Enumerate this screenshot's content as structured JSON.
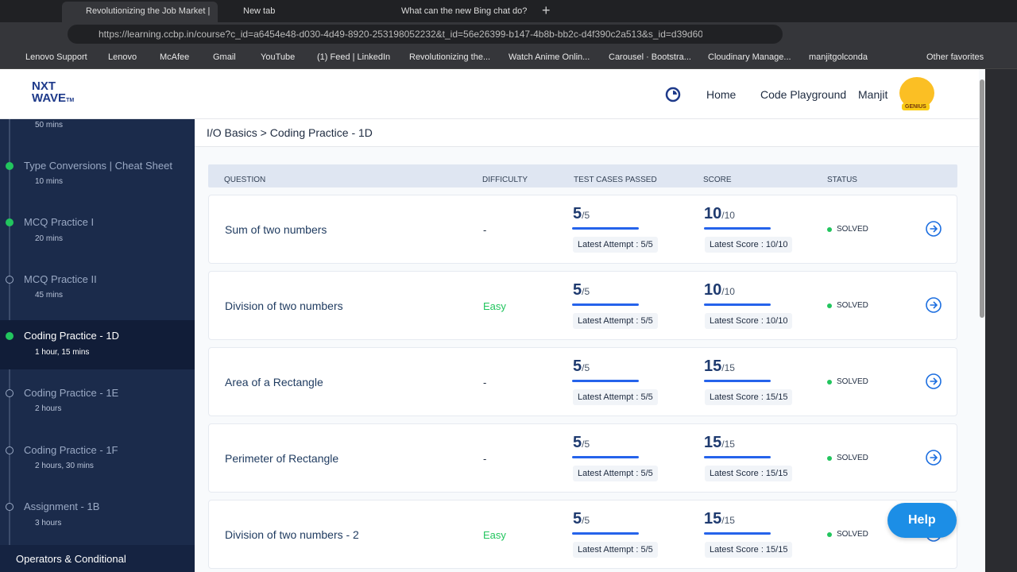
{
  "browser": {
    "tabs": [
      "Revolutionizing the Job Market |",
      "New tab",
      "What can the new Bing chat do?"
    ],
    "url": "https://learning.ccbp.in/course?c_id=a6454e48-d030-4d49-8920-253198052232&t_id=56e26399-b147-4b8b-bb2c-d4f390c2a513&s_id=d39d60...",
    "bookmarks": [
      "Lenovo Support",
      "Lenovo",
      "McAfee",
      "Gmail",
      "YouTube",
      "(1) Feed | LinkedIn",
      "Revolutionizing the...",
      "Watch Anime Onlin...",
      "Carousel · Bootstra...",
      "Cloudinary Manage...",
      "manjitgolconda",
      "Other favorites"
    ]
  },
  "header": {
    "logo_line1": "NXT",
    "logo_line2": "WAVE",
    "logo_tm": "TM",
    "nav": [
      "Home",
      "Code Playground"
    ],
    "user": "Manjit",
    "badge": "GENIUS"
  },
  "sidebar": {
    "top_duration": "50 mins",
    "items": [
      {
        "title": "Type Conversions | Cheat Sheet",
        "duration": "10 mins"
      },
      {
        "title": "MCQ Practice I",
        "duration": "20 mins"
      },
      {
        "title": "MCQ Practice II",
        "duration": "45 mins"
      },
      {
        "title": "Coding Practice - 1D",
        "duration": "1 hour, 15 mins"
      },
      {
        "title": "Coding Practice - 1E",
        "duration": "2 hours"
      },
      {
        "title": "Coding Practice - 1F",
        "duration": "2 hours, 30 mins"
      },
      {
        "title": "Assignment - 1B",
        "duration": "3 hours"
      }
    ],
    "section": "Operators & Conditional"
  },
  "breadcrumb": "I/O Basics > Coding Practice - 1D",
  "table": {
    "columns": [
      "QUESTION",
      "DIFFICULTY",
      "TEST CASES PASSED",
      "SCORE",
      "STATUS"
    ],
    "rows": [
      {
        "question": "Sum of two numbers",
        "difficulty": "-",
        "passed": "5",
        "total": "/5",
        "latest_attempt": "Latest Attempt : 5/5",
        "score": "10",
        "score_total": "/10",
        "latest_score": "Latest Score : 10/10",
        "status": "SOLVED"
      },
      {
        "question": "Division of two numbers",
        "difficulty": "Easy",
        "passed": "5",
        "total": "/5",
        "latest_attempt": "Latest Attempt : 5/5",
        "score": "10",
        "score_total": "/10",
        "latest_score": "Latest Score : 10/10",
        "status": "SOLVED"
      },
      {
        "question": "Area of a Rectangle",
        "difficulty": "-",
        "passed": "5",
        "total": "/5",
        "latest_attempt": "Latest Attempt : 5/5",
        "score": "15",
        "score_total": "/15",
        "latest_score": "Latest Score : 15/15",
        "status": "SOLVED"
      },
      {
        "question": "Perimeter of Rectangle",
        "difficulty": "-",
        "passed": "5",
        "total": "/5",
        "latest_attempt": "Latest Attempt : 5/5",
        "score": "15",
        "score_total": "/15",
        "latest_score": "Latest Score : 15/15",
        "status": "SOLVED"
      },
      {
        "question": "Division of two numbers - 2",
        "difficulty": "Easy",
        "passed": "5",
        "total": "/5",
        "latest_attempt": "Latest Attempt : 5/5",
        "score": "15",
        "score_total": "/15",
        "latest_score": "Latest Score : 15/15",
        "status": "SOLVED"
      }
    ]
  },
  "help": "Help"
}
